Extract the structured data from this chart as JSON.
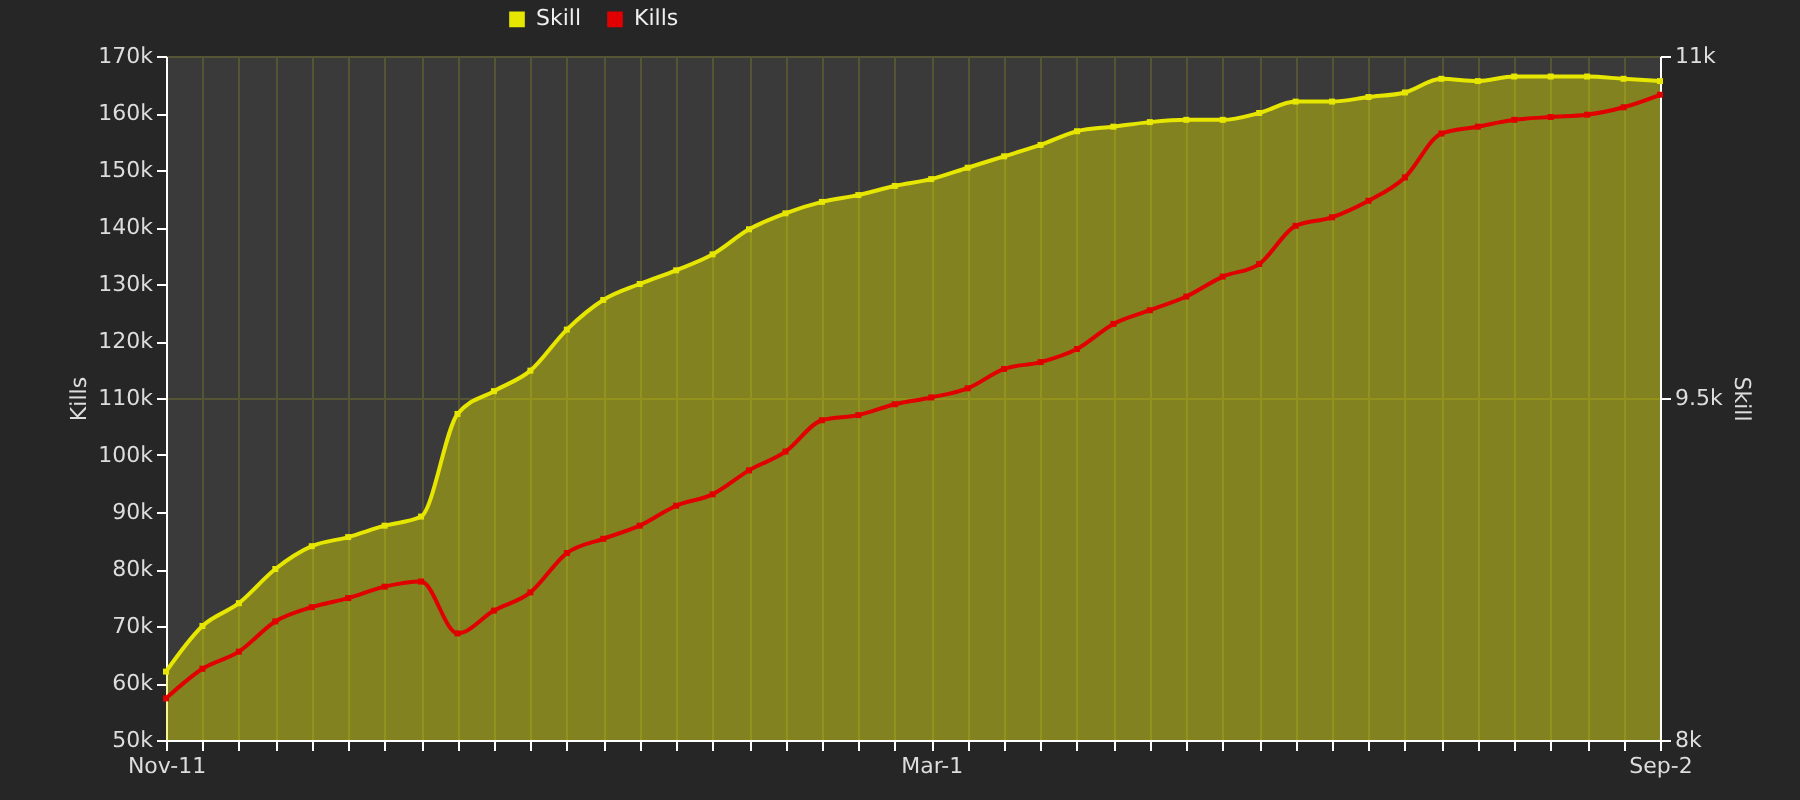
{
  "chart_data": {
    "type": "line",
    "categories": [
      "Nov-11",
      null,
      null,
      null,
      null,
      null,
      null,
      null,
      null,
      null,
      null,
      null,
      null,
      null,
      null,
      null,
      null,
      null,
      null,
      null,
      null,
      "Mar-1",
      null,
      null,
      null,
      null,
      null,
      null,
      null,
      null,
      null,
      null,
      null,
      null,
      null,
      null,
      null,
      null,
      null,
      null,
      null,
      "Sep-2"
    ],
    "series": [
      {
        "name": "Skill",
        "type": "area",
        "axis": "y2",
        "color": "#e6e600",
        "values": [
          8300,
          8500,
          8600,
          8750,
          8850,
          8890,
          8940,
          8980,
          9430,
          9530,
          9620,
          9800,
          9930,
          10000,
          10060,
          10130,
          10240,
          10310,
          10360,
          10390,
          10430,
          10460,
          10510,
          10560,
          10610,
          10670,
          10690,
          10710,
          10720,
          10720,
          10750,
          10800,
          10800,
          10820,
          10840,
          10900,
          10890,
          10910,
          10910,
          10910,
          10900,
          10890
        ]
      },
      {
        "name": "Kills",
        "type": "line",
        "color": "#e00000",
        "values": [
          57300,
          62500,
          65500,
          70800,
          73300,
          74900,
          76900,
          77800,
          68700,
          72700,
          75900,
          82800,
          85300,
          87600,
          91100,
          93100,
          97300,
          100600,
          106100,
          107000,
          108900,
          110100,
          111700,
          115100,
          116300,
          118600,
          123000,
          125400,
          127800,
          131300,
          133500,
          140200,
          141700,
          144600,
          148700,
          156400,
          157600,
          158800,
          159300,
          159700,
          161000,
          163200
        ]
      }
    ],
    "ylabel": "Kills",
    "y2label": "Skill",
    "ylim": [
      50000,
      170000
    ],
    "yticks": [
      {
        "value": 50000,
        "label": "50k"
      },
      {
        "value": 60000,
        "label": "60k"
      },
      {
        "value": 70000,
        "label": "70k"
      },
      {
        "value": 80000,
        "label": "80k"
      },
      {
        "value": 90000,
        "label": "90k"
      },
      {
        "value": 100000,
        "label": "100k"
      },
      {
        "value": 110000,
        "label": "110k"
      },
      {
        "value": 120000,
        "label": "120k"
      },
      {
        "value": 130000,
        "label": "130k"
      },
      {
        "value": 140000,
        "label": "140k"
      },
      {
        "value": 150000,
        "label": "150k"
      },
      {
        "value": 160000,
        "label": "160k"
      },
      {
        "value": 170000,
        "label": "170k"
      }
    ],
    "y2lim": [
      8000,
      11000
    ],
    "y2ticks": [
      {
        "value": 8000,
        "label": "8k"
      },
      {
        "value": 9500,
        "label": "9.5k"
      },
      {
        "value": 11000,
        "label": "11k"
      }
    ],
    "grid": true,
    "legend": "top",
    "marker": "square",
    "line_style": "solid"
  }
}
